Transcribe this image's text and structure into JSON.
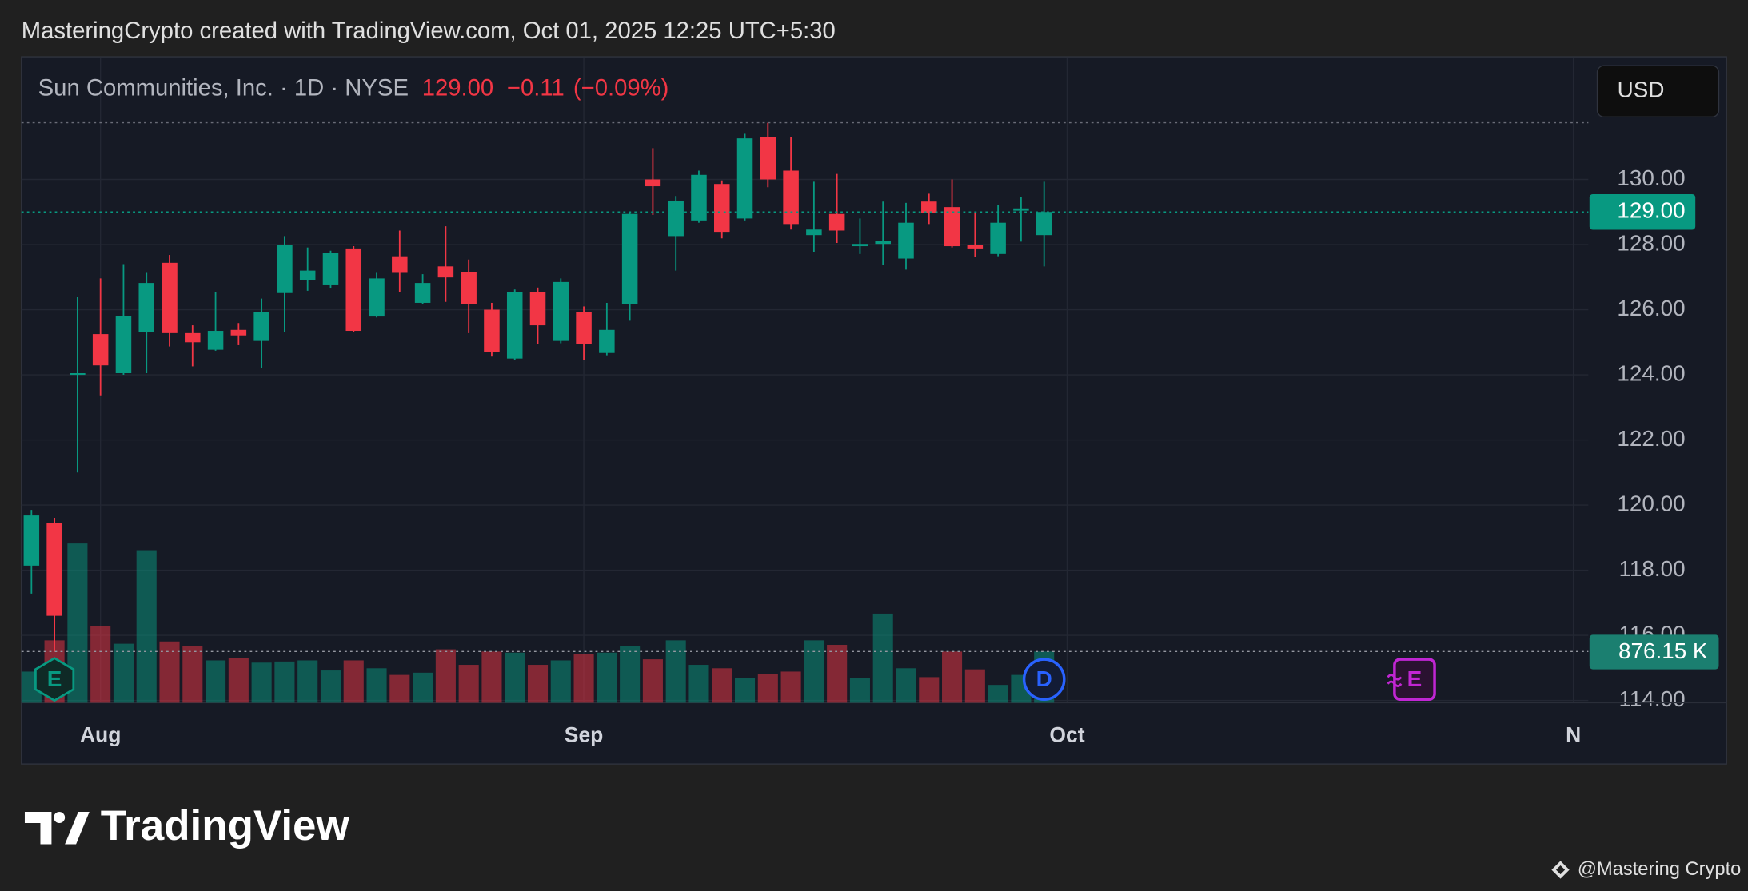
{
  "caption": "MasteringCrypto created with TradingView.com, Oct 01, 2025 12:25 UTC+5:30",
  "currency_button": "USD",
  "brand": "TradingView",
  "credit": "@Mastering Crypto",
  "chart_data": {
    "type": "candlestick",
    "header": {
      "name": "Sun Communities, Inc. · 1D · NYSE",
      "price": "129.00",
      "change": "−0.11",
      "change_pct": "(−0.09%)"
    },
    "categories": [
      null,
      null,
      null,
      "Aug",
      null,
      null,
      null,
      null,
      null,
      null,
      null,
      null,
      null,
      null,
      null,
      null,
      null,
      null,
      null,
      null,
      null,
      null,
      null,
      null,
      "Sep",
      null,
      null,
      null,
      null,
      null,
      null,
      null,
      null,
      null,
      null,
      null,
      null,
      null,
      null,
      null,
      null,
      null,
      null,
      null,
      null,
      "Oct",
      null,
      null,
      null,
      null,
      null,
      null,
      null,
      null,
      null,
      null,
      null,
      null,
      null,
      null,
      null,
      null,
      null,
      null,
      null,
      null,
      null,
      "N"
    ],
    "open": [
      118.14,
      119.44,
      124.0,
      125.25,
      124.05,
      125.32,
      127.44,
      125.28,
      124.77,
      125.38,
      125.04,
      126.51,
      126.92,
      126.75,
      127.88,
      125.79,
      127.64,
      126.21,
      127.33,
      127.16,
      126.0,
      124.5,
      126.55,
      125.04,
      125.93,
      124.67,
      126.17,
      130.0,
      128.26,
      128.74,
      129.86,
      128.8,
      131.3,
      130.27,
      128.29,
      128.94,
      127.95,
      128.02,
      127.57,
      129.32,
      129.15,
      127.98,
      127.71,
      129.04,
      128.29,
      null,
      null,
      null,
      null,
      null,
      null,
      null,
      null,
      null,
      null,
      null,
      null,
      null,
      null,
      null,
      null,
      null,
      null,
      null,
      null,
      null,
      null,
      null
    ],
    "high": [
      119.85,
      119.61,
      126.38,
      126.96,
      127.4,
      127.13,
      127.68,
      125.52,
      126.55,
      125.59,
      126.34,
      128.26,
      127.91,
      127.81,
      127.95,
      127.13,
      128.43,
      127.09,
      128.56,
      127.54,
      126.21,
      126.62,
      126.68,
      126.96,
      126.1,
      126.21,
      129.01,
      130.96,
      129.49,
      130.27,
      129.97,
      131.4,
      131.74,
      131.3,
      129.93,
      130.17,
      128.8,
      129.32,
      129.28,
      129.56,
      130.0,
      129.01,
      129.21,
      129.45,
      129.93,
      null,
      null,
      null,
      null,
      null,
      null,
      null,
      null,
      null,
      null,
      null,
      null,
      null,
      null,
      null,
      null,
      null,
      null,
      null,
      null,
      null,
      null,
      null
    ],
    "low": [
      117.28,
      115.5,
      121.0,
      123.37,
      124.0,
      124.05,
      124.87,
      124.26,
      124.74,
      124.91,
      124.22,
      125.32,
      126.58,
      126.65,
      125.32,
      125.76,
      126.55,
      126.17,
      126.24,
      125.28,
      124.56,
      124.46,
      124.94,
      124.97,
      124.46,
      124.6,
      125.66,
      128.91,
      127.2,
      128.67,
      128.19,
      128.74,
      129.76,
      128.46,
      127.78,
      128.05,
      127.71,
      127.37,
      127.23,
      128.63,
      127.91,
      127.61,
      127.64,
      128.09,
      127.33,
      null,
      null,
      null,
      null,
      null,
      null,
      null,
      null,
      null,
      null,
      null,
      null,
      null,
      null,
      null,
      null,
      null,
      null,
      null,
      null,
      null,
      null,
      null
    ],
    "close": [
      119.68,
      116.6,
      124.05,
      124.29,
      125.8,
      126.82,
      125.28,
      125.0,
      125.35,
      125.21,
      125.93,
      127.98,
      127.2,
      127.74,
      125.35,
      126.96,
      127.13,
      126.82,
      126.99,
      126.17,
      124.7,
      126.55,
      125.52,
      126.85,
      124.94,
      125.38,
      128.94,
      129.79,
      129.35,
      130.14,
      128.39,
      131.26,
      130.0,
      128.63,
      128.46,
      128.43,
      128.02,
      128.12,
      128.67,
      128.97,
      127.95,
      127.88,
      128.67,
      129.11,
      129.0,
      null,
      null,
      null,
      null,
      null,
      null,
      null,
      null,
      null,
      null,
      null,
      null,
      null,
      null,
      null,
      null,
      null,
      null,
      null,
      null,
      null,
      null,
      null
    ],
    "volume": [
      533000,
      1067000,
      2724000,
      1314000,
      1009000,
      2609000,
      1048000,
      971000,
      724000,
      762000,
      686000,
      705000,
      724000,
      552000,
      724000,
      590000,
      476000,
      514000,
      914000,
      648000,
      876000,
      857000,
      648000,
      724000,
      838000,
      857000,
      971000,
      743000,
      1067000,
      648000,
      590000,
      419000,
      495000,
      533000,
      1067000,
      990000,
      419000,
      1524000,
      590000,
      438000,
      876000,
      571000,
      305000,
      476000,
      876150,
      null,
      null,
      null,
      null,
      null,
      null,
      null,
      null,
      null,
      null,
      null,
      null,
      null,
      null,
      null,
      null,
      null,
      null,
      null,
      null,
      null,
      null,
      null
    ],
    "up_color": "#089981",
    "down_color": "#f23645",
    "ylim": [
      113.93,
      133.73
    ],
    "yticks": [
      {
        "value": 114,
        "label": "114.00"
      },
      {
        "value": 116,
        "label": "116.00"
      },
      {
        "value": 118,
        "label": "118.00"
      },
      {
        "value": 120,
        "label": "120.00"
      },
      {
        "value": 122,
        "label": "122.00"
      },
      {
        "value": 124,
        "label": "124.00"
      },
      {
        "value": 126,
        "label": "126.00"
      },
      {
        "value": 128,
        "label": "128.00"
      },
      {
        "value": 130,
        "label": "130.00"
      }
    ],
    "volume_ylim": [
      0,
      11028000
    ],
    "price_marker": {
      "value": 129,
      "label": "129.00"
    },
    "volume_marker": {
      "value": 876150,
      "label": "876.15 K"
    },
    "events": [
      "E",
      "D",
      "E"
    ],
    "grid": true
  }
}
